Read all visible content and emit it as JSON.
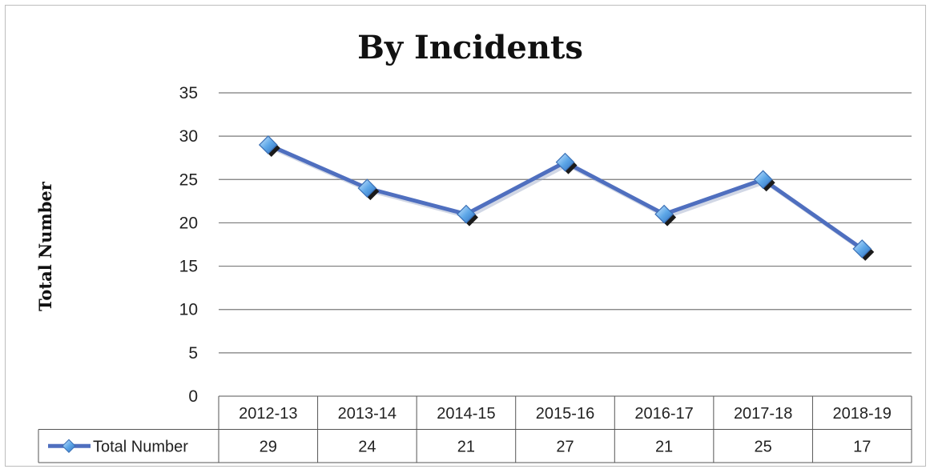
{
  "chart_data": {
    "type": "line",
    "title": "By Incidents",
    "ylabel": "Total Number",
    "xlabel": "",
    "ylim": [
      0,
      35
    ],
    "yticks": [
      0,
      5,
      10,
      15,
      20,
      25,
      30,
      35
    ],
    "grid": true,
    "legend": "data-table-left",
    "categories": [
      "2012-13",
      "2013-14",
      "2014-15",
      "2015-16",
      "2016-17",
      "2017-18",
      "2018-19"
    ],
    "series": [
      {
        "name": "Total Number",
        "values": [
          29,
          24,
          21,
          27,
          21,
          25,
          17
        ],
        "color": "#4f6fbf",
        "marker_color": "#5fa8e8"
      }
    ]
  }
}
